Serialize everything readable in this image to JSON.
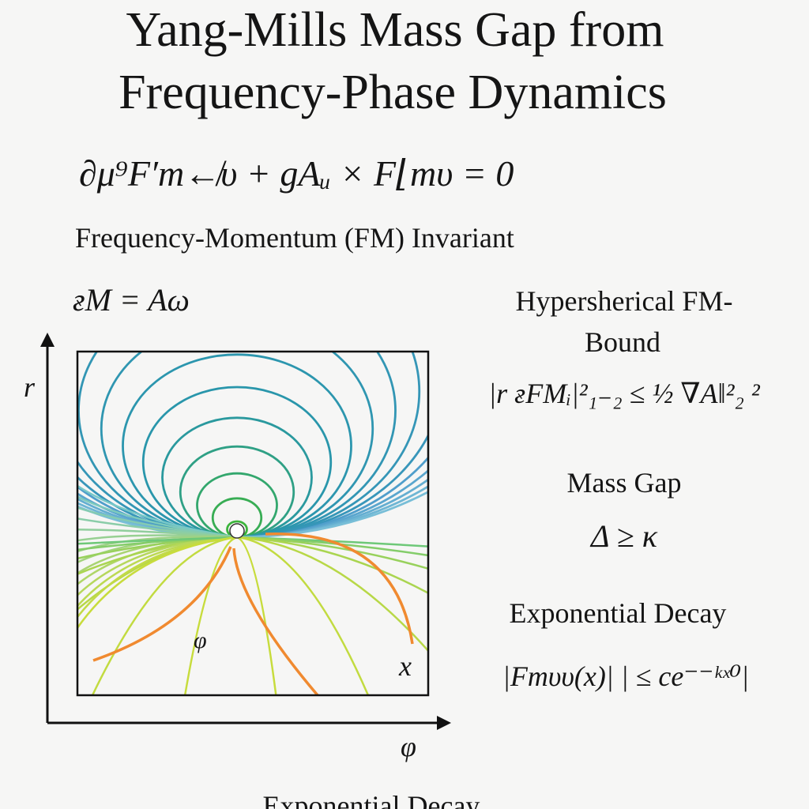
{
  "title": [
    "Yang-Mills Mass Gap from",
    "Frequency-Phase Dynamics"
  ],
  "equation": "∂μ⁹F′m↚υ + gAᵤ × F⌊mυ = 0",
  "invariant": {
    "heading": "Frequency-Momentum (FM) Invariant",
    "formula": "ғM = Aω"
  },
  "bound": {
    "heading": [
      "Hypersherical FM-",
      "Bound"
    ],
    "formula": "|r ғFMᵢ|²₁₋₂ ≤ ½ ∇A‖²₂ ²"
  },
  "mass_gap": {
    "heading": "Mass Gap",
    "formula": "Δ ≥ κ"
  },
  "decay": {
    "heading": "Exponential Decay",
    "formula": "|Fmυυ(x)| | ≤ ce⁻⁻ᵏˣ⁰|"
  },
  "plot": {
    "y_axis_label": "r",
    "x_axis_label": "φ",
    "inner_label": "φ",
    "corner_label": "x"
  },
  "footer": "Exponential Decay"
}
